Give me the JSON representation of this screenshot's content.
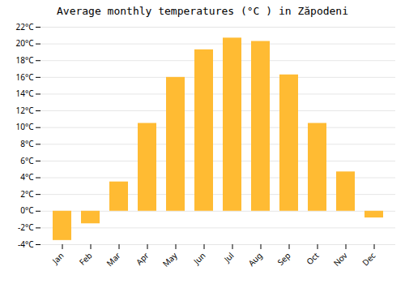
{
  "chart_data": {
    "type": "bar",
    "title": "Average monthly temperatures (°C ) in Zăpodeni",
    "categories": [
      "Jan",
      "Feb",
      "Mar",
      "Apr",
      "May",
      "Jun",
      "Jul",
      "Aug",
      "Sep",
      "Oct",
      "Nov",
      "Dec"
    ],
    "values": [
      -3.5,
      -1.5,
      3.5,
      10.5,
      16.0,
      19.3,
      20.7,
      20.3,
      16.3,
      10.5,
      4.7,
      -0.8
    ],
    "color": "#FFBB33",
    "ylim": [
      -4,
      22
    ],
    "yticks": [
      {
        "value": -4,
        "label": "-4°C"
      },
      {
        "value": -2,
        "label": "-2°C"
      },
      {
        "value": 0,
        "label": "0°C"
      },
      {
        "value": 2,
        "label": "2°C"
      },
      {
        "value": 4,
        "label": "4°C"
      },
      {
        "value": 6,
        "label": "6°C"
      },
      {
        "value": 8,
        "label": "8°C"
      },
      {
        "value": 10,
        "label": "10°C"
      },
      {
        "value": 12,
        "label": "12°C"
      },
      {
        "value": 14,
        "label": "14°C"
      },
      {
        "value": 16,
        "label": "16°C"
      },
      {
        "value": 18,
        "label": "18°C"
      },
      {
        "value": 20,
        "label": "20°C"
      },
      {
        "value": 22,
        "label": "22°C"
      }
    ],
    "grid": true
  }
}
